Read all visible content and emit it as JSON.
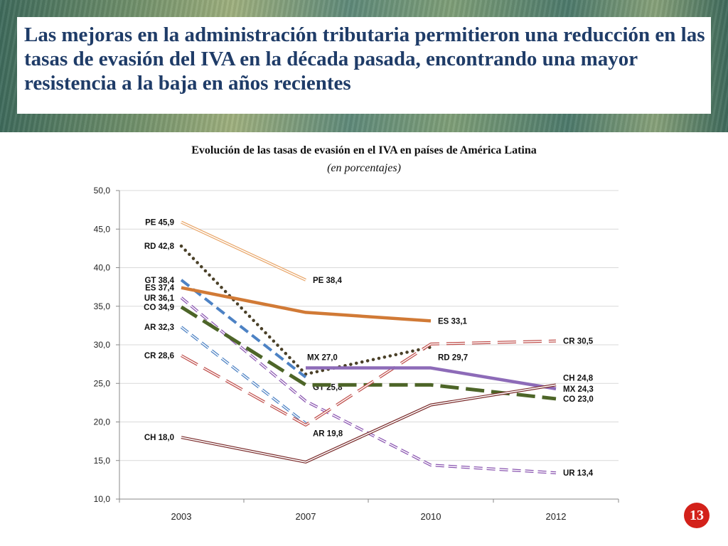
{
  "slide": {
    "title": "Las mejoras en la administración tributaria permitieron una reducción en las tasas de evasión del IVA en la década pasada, encontrando una mayor resistencia a la baja en años recientes",
    "page_number": "13"
  },
  "chart_data": {
    "type": "line",
    "title": "Evolución de las tasas de evasión en el IVA en países de América Latina",
    "subtitle": "(en porcentajes)",
    "categories": [
      "2003",
      "2007",
      "2010",
      "2012"
    ],
    "ylim": [
      10,
      50
    ],
    "ytick_labels": [
      "10,0",
      "15,0",
      "20,0",
      "25,0",
      "30,0",
      "35,0",
      "40,0",
      "45,0",
      "50,0"
    ],
    "grid": true,
    "series": [
      {
        "name": "PE",
        "values": [
          45.9,
          38.4,
          null,
          null
        ],
        "color": "#e8a466",
        "style": "double",
        "labels": [
          {
            "index": 0,
            "text": "PE 45,9",
            "side": "left"
          },
          {
            "index": 1,
            "text": "PE 38,4",
            "side": "right"
          }
        ]
      },
      {
        "name": "RD",
        "values": [
          42.8,
          26.2,
          29.7,
          null
        ],
        "color": "#4a4028",
        "style": "dotted",
        "labels": [
          {
            "index": 0,
            "text": "RD 42,8",
            "side": "left"
          },
          {
            "index": 2,
            "text": "RD 29,7",
            "side": "right-below"
          }
        ]
      },
      {
        "name": "GT",
        "values": [
          38.4,
          25.8,
          null,
          null
        ],
        "color": "#4d82c4",
        "style": "dashed",
        "labels": [
          {
            "index": 0,
            "text": "GT 38,4",
            "side": "left"
          },
          {
            "index": 1,
            "text": "GT 25,8",
            "side": "right-below"
          }
        ]
      },
      {
        "name": "ES",
        "values": [
          37.4,
          34.2,
          33.1,
          null
        ],
        "color": "#d17a36",
        "style": "solid-thick",
        "labels": [
          {
            "index": 0,
            "text": "ES 37,4",
            "side": "left"
          },
          {
            "index": 2,
            "text": "ES 33,1",
            "side": "right"
          }
        ]
      },
      {
        "name": "UR",
        "values": [
          36.1,
          22.7,
          14.4,
          13.4
        ],
        "color": "#8a55b0",
        "style": "dashed-double",
        "labels": [
          {
            "index": 0,
            "text": "UR 36,1",
            "side": "left"
          },
          {
            "index": 3,
            "text": "UR 13,4",
            "side": "right"
          }
        ]
      },
      {
        "name": "CO",
        "values": [
          34.9,
          24.8,
          24.8,
          23.0
        ],
        "color": "#4d6528",
        "style": "long-dash",
        "labels": [
          {
            "index": 0,
            "text": "CO 34,9",
            "side": "left"
          },
          {
            "index": 3,
            "text": "CO 23,0",
            "side": "right"
          }
        ]
      },
      {
        "name": "AR",
        "values": [
          32.3,
          19.8,
          null,
          null
        ],
        "color": "#4d82c4",
        "style": "dashed-double",
        "labels": [
          {
            "index": 0,
            "text": "AR 32,3",
            "side": "left"
          },
          {
            "index": 1,
            "text": "AR 19,8",
            "side": "right-below"
          }
        ]
      },
      {
        "name": "CR",
        "values": [
          28.6,
          19.6,
          30.1,
          30.5
        ],
        "color": "#c0504d",
        "style": "long-dash-double",
        "labels": [
          {
            "index": 0,
            "text": "CR 28,6",
            "side": "left"
          },
          {
            "index": 3,
            "text": "CR 30,5",
            "side": "right"
          }
        ]
      },
      {
        "name": "MX",
        "values": [
          null,
          27.0,
          27.0,
          24.3
        ],
        "color": "#8d6bb8",
        "style": "solid-thick",
        "labels": [
          {
            "index": 1,
            "text": "MX 27,0",
            "side": "left-above"
          },
          {
            "index": 3,
            "text": "MX 24,3",
            "side": "right"
          }
        ]
      },
      {
        "name": "CH",
        "values": [
          18.0,
          14.8,
          22.2,
          24.8
        ],
        "color": "#7a2b2b",
        "style": "double",
        "labels": [
          {
            "index": 0,
            "text": "CH 18,0",
            "side": "left"
          },
          {
            "index": 3,
            "text": "CH 24,8",
            "side": "right-above"
          }
        ]
      }
    ]
  }
}
